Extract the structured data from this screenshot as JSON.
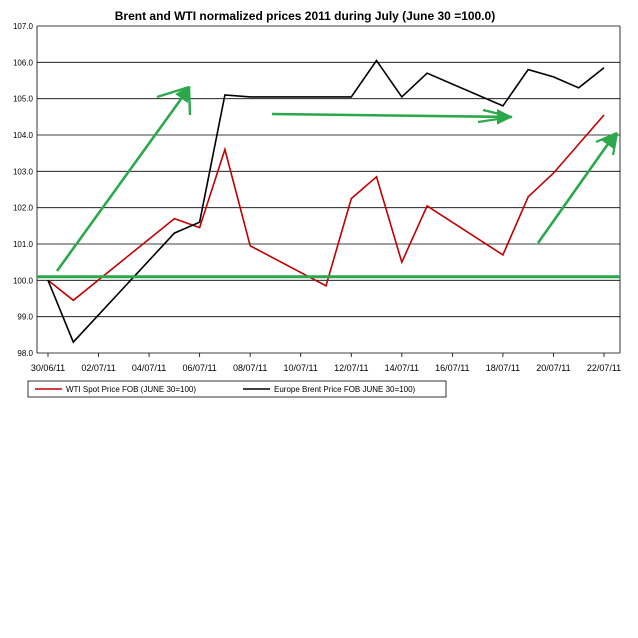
{
  "chart_data": {
    "type": "line",
    "title": "Brent and WTI normalized prices 2011 during July  (June 30 =100.0)",
    "xlabel": "",
    "ylabel": "",
    "ylim": [
      98.0,
      107.0
    ],
    "y_ticks": [
      "98.0",
      "99.0",
      "100.0",
      "101.0",
      "102.0",
      "103.0",
      "104.0",
      "105.0",
      "106.0",
      "107.0"
    ],
    "x_ticks": [
      "30/06/11",
      "02/07/11",
      "04/07/11",
      "06/07/11",
      "08/07/11",
      "10/07/11",
      "12/07/11",
      "14/07/11",
      "16/07/11",
      "18/07/11",
      "20/07/11",
      "22/07/11"
    ],
    "grid": "horizontal",
    "legend_position": "bottom",
    "series": [
      {
        "name": "WTI Spot Price FOB (JUNE 30=100)",
        "color": "#c00000",
        "x": [
          "30/06/11",
          "01/07/11",
          "05/07/11",
          "06/07/11",
          "07/07/11",
          "08/07/11",
          "11/07/11",
          "12/07/11",
          "13/07/11",
          "14/07/11",
          "15/07/11",
          "18/07/11",
          "19/07/11",
          "20/07/11",
          "21/07/11",
          "22/07/11"
        ],
        "values": [
          100.0,
          99.45,
          101.7,
          101.45,
          103.6,
          100.95,
          99.85,
          102.25,
          102.85,
          100.5,
          102.05,
          100.7,
          102.3,
          102.95,
          103.75,
          104.55
        ]
      },
      {
        "name": "Europe Brent Price FOB JUNE 30=100)",
        "color": "#000000",
        "x": [
          "30/06/11",
          "01/07/11",
          "05/07/11",
          "06/07/11",
          "07/07/11",
          "08/07/11",
          "11/07/11",
          "12/07/11",
          "13/07/11",
          "14/07/11",
          "15/07/11",
          "18/07/11",
          "19/07/11",
          "20/07/11",
          "21/07/11",
          "22/07/11"
        ],
        "values": [
          100.0,
          98.3,
          101.3,
          101.6,
          105.1,
          105.05,
          105.05,
          105.05,
          106.05,
          105.05,
          105.7,
          104.8,
          105.8,
          105.6,
          105.3,
          105.85
        ]
      }
    ],
    "annotations": {
      "arrow_color": "#2aa84a",
      "baseline_value": 100.1
    }
  }
}
